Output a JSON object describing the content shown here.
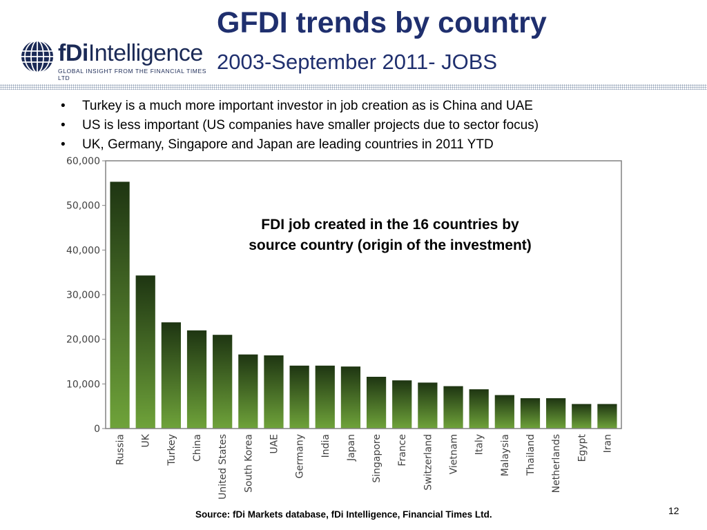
{
  "slide": {
    "title": "GFDI trends by country",
    "subtitle": "2003-September 2011- JOBS",
    "logo": {
      "name": "fDiIntelligence",
      "tagline": "GLOBAL INSIGHT FROM THE FINANCIAL TIMES LTD"
    },
    "bullets": [
      "Turkey is a much more important investor in job creation as is China and UAE",
      "US is less important (US companies have smaller projects due to sector focus)",
      "UK, Germany, Singapore and Japan are leading countries in 2011 YTD"
    ],
    "footer_source": "Source: fDi Markets database, fDi Intelligence, Financial Times Ltd",
    "page_number": "12"
  },
  "colors": {
    "title": "#1f2f6e",
    "bar_top": "#1e3512",
    "bar_bottom": "#6fa33a",
    "axis": "#808080"
  },
  "chart_data": {
    "type": "bar",
    "title": "FDI job created in the 16 countries by source country (origin of the investment)",
    "title_lines": [
      "FDI job created in the 16 countries by",
      "source country (origin of the investment)"
    ],
    "categories": [
      "Russia",
      "UK",
      "Turkey",
      "China",
      "United States",
      "South Korea",
      "UAE",
      "Germany",
      "India",
      "Japan",
      "Singapore",
      "France",
      "Switzerland",
      "Vietnam",
      "Italy",
      "Malaysia",
      "Thailand",
      "Netherlands",
      "Egypt",
      "Iran"
    ],
    "values": [
      55300,
      34300,
      23800,
      22000,
      21000,
      16600,
      16400,
      14100,
      14100,
      13900,
      11600,
      10800,
      10300,
      9500,
      8800,
      7500,
      6800,
      6800,
      5500,
      5500
    ],
    "ylim": [
      0,
      60000
    ],
    "yticks": [
      "0",
      "10,000",
      "20,000",
      "30,000",
      "40,000",
      "50,000",
      "60,000"
    ],
    "grid": false,
    "xlabel": "",
    "ylabel": ""
  }
}
